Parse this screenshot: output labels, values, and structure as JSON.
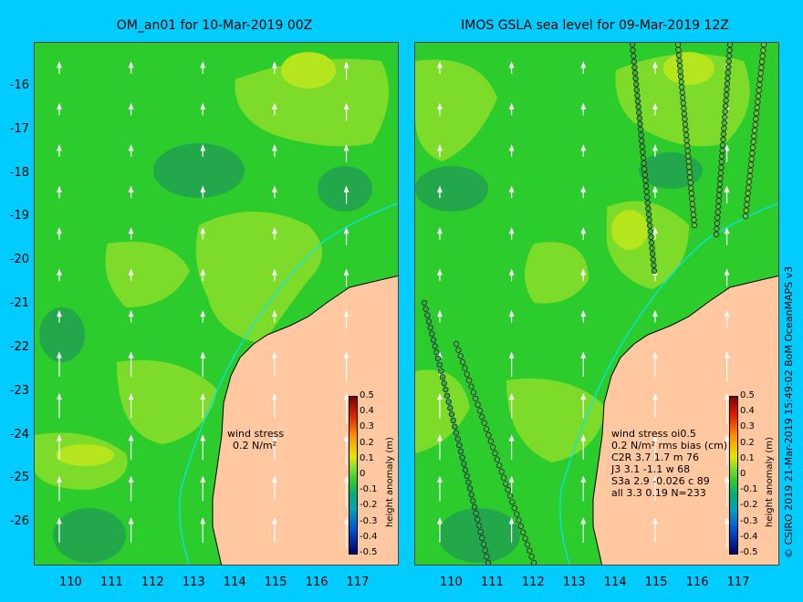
{
  "left_panel": {
    "title": "OM_an01 for 10-Mar-2019 00Z",
    "legend": {
      "line1": "wind stress",
      "line2": "0.2 N/m²"
    }
  },
  "right_panel": {
    "title": "IMOS GSLA sea level  for 09-Mar-2019 12Z",
    "legend": {
      "line1": "wind stress oi0.5",
      "line2": "0.2 N/m²  rms bias (cm)",
      "rows": [
        "C2R    3.7  1.7  m 76",
        "J3     3.1  -1.1  w 68",
        "S3a    2.9  -0.026 c 89",
        "all    3.3  0.19  N=233"
      ]
    }
  },
  "axes": {
    "y_ticks": [
      "-16",
      "-17",
      "-18",
      "-19",
      "-20",
      "-21",
      "-22",
      "-23",
      "-24",
      "-25",
      "-26"
    ],
    "x_ticks": [
      "110",
      "111",
      "112",
      "113",
      "114",
      "115",
      "116",
      "117"
    ],
    "lon_range": [
      109.1,
      118.0
    ],
    "lat_range": [
      -27.0,
      -15.0
    ]
  },
  "colorbar": {
    "title": "height anomaly (m)",
    "ticks": [
      "0.5",
      "0.4",
      "0.3",
      "0.2",
      "0.1",
      "0",
      "-0.1",
      "-0.2",
      "-0.3",
      "-0.4",
      "-0.5"
    ],
    "range": [
      -0.5,
      0.5
    ]
  },
  "credit": "© CSIRO 2019   21-Mar-2019 15:49:02 BoM OceanMAPS v3",
  "colors": {
    "background": "#00ccff",
    "land": "#ffc8a0",
    "sea_base": "#2dcc2d",
    "sea_light": "#7ddc2a",
    "sea_dark": "#22a84a",
    "coast_line": "#00e5ff"
  }
}
